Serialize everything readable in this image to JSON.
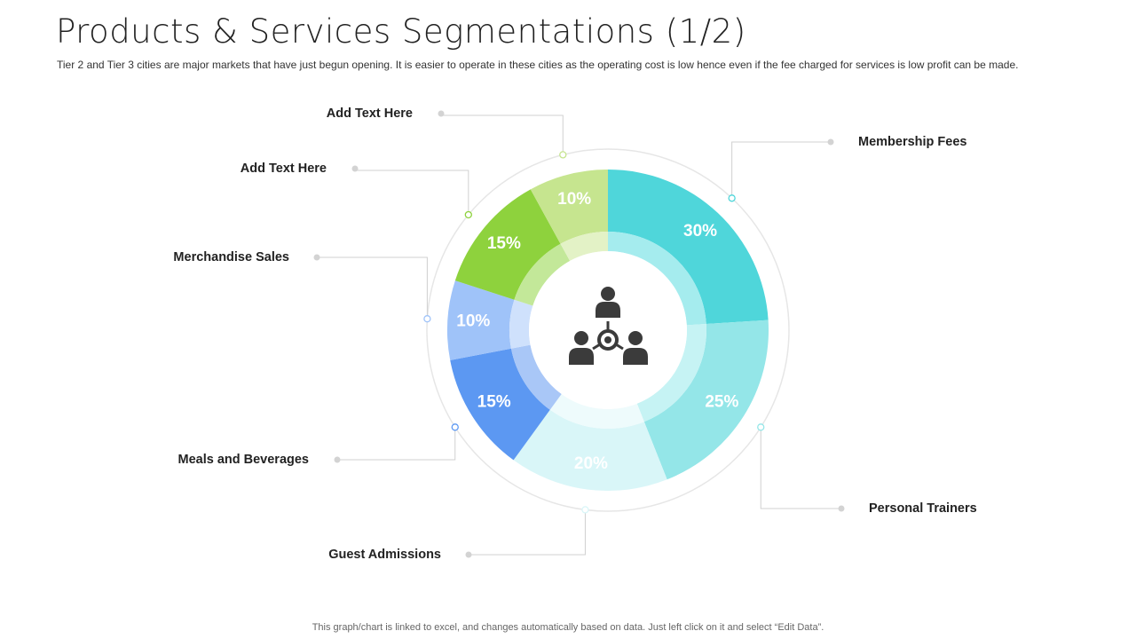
{
  "header": {
    "title": "Products & Services Segmentations (1/2)",
    "subtitle": "Tier 2 and Tier 3 cities are major markets that have just begun opening. It is easier to operate in these cities as the operating cost is low hence even if the fee charged for services is low profit can be made."
  },
  "footer": {
    "note": "This graph/chart is linked to excel, and changes automatically based on data. Just left click on it and select “Edit Data”."
  },
  "center_icon": "team-network-icon",
  "chart_data": {
    "type": "pie",
    "variant": "donut",
    "title": "Products & Services Segmentations (1/2)",
    "segments": [
      {
        "label": "Membership Fees",
        "value": 30,
        "display": "30%",
        "color": "#4fd6da",
        "inner_color": "#a5ecee"
      },
      {
        "label": "Personal Trainers",
        "value": 25,
        "display": "25%",
        "color": "#94e6e8",
        "inner_color": "#c6f3f4"
      },
      {
        "label": "Guest Admissions",
        "value": 20,
        "display": "20%",
        "color": "#d9f6f8",
        "inner_color": "#eefbfc"
      },
      {
        "label": "Meals and Beverages",
        "value": 15,
        "display": "15%",
        "color": "#5c98f2",
        "inner_color": "#a9c7f7"
      },
      {
        "label": "Merchandise Sales",
        "value": 10,
        "display": "10%",
        "color": "#9fc3f9",
        "inner_color": "#cfe1fc"
      },
      {
        "label": "Add Text Here",
        "value": 15,
        "display": "15%",
        "color": "#8ed23d",
        "inner_color": "#c3e899"
      },
      {
        "label": "Add Text Here",
        "value": 10,
        "display": "10%",
        "color": "#c6e58f",
        "inner_color": "#e3f2c6"
      }
    ]
  }
}
